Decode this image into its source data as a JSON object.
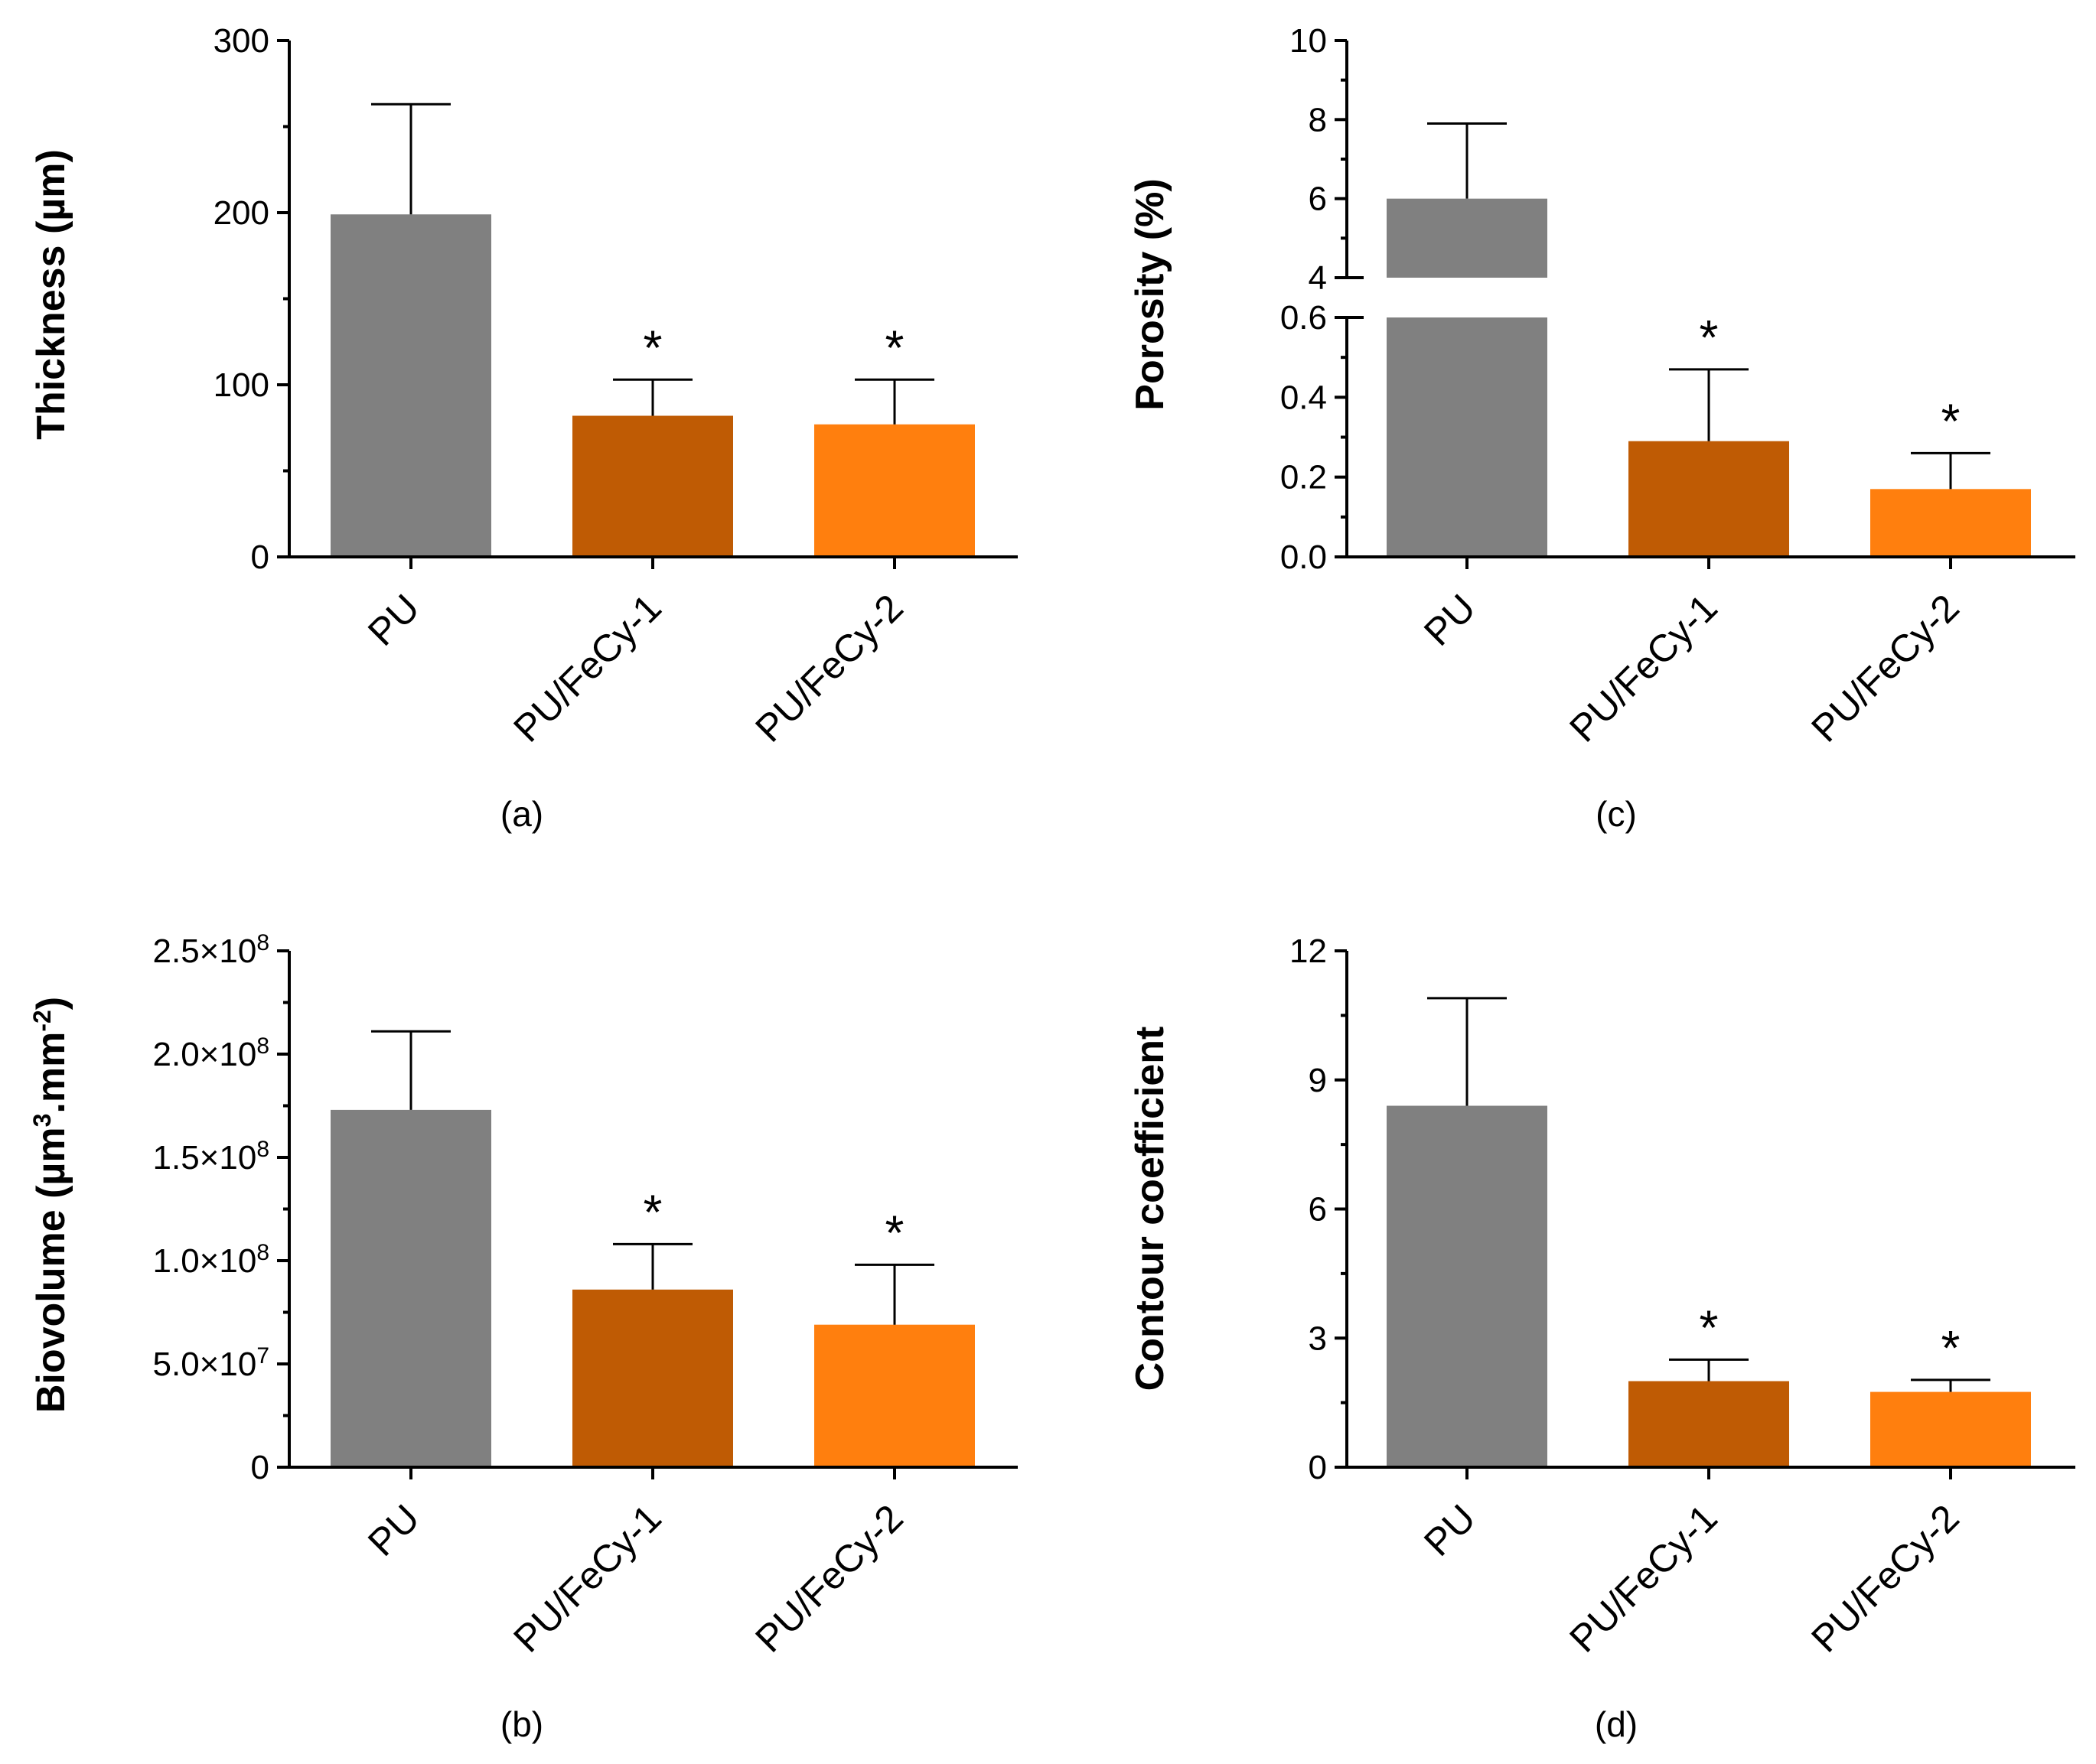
{
  "figure": {
    "background": "#ffffff",
    "colors": {
      "PU": "#808080",
      "PU/FeCy-1": "#bf5b04",
      "PU/FeCy-2": "#ff7f0e",
      "axis": "#000000"
    }
  },
  "chart_data": [
    {
      "id": "a",
      "caption": "(a)",
      "type": "bar",
      "ylabel": "Thickness (µm)",
      "categories": [
        "PU",
        "PU/FeCy-1",
        "PU/FeCy-2"
      ],
      "values": [
        199,
        82,
        77
      ],
      "errors": [
        64,
        21,
        26
      ],
      "significance": [
        "",
        "*",
        "*"
      ],
      "ylim": [
        0,
        300
      ],
      "yticks": [
        0,
        100,
        200,
        300
      ],
      "ytick_labels": [
        "0",
        "100",
        "200",
        "300"
      ],
      "minor_step": 50
    },
    {
      "id": "b",
      "caption": "(b)",
      "type": "bar",
      "ylabel": "Biovolume (µm³.mm⁻²)",
      "ylabel_parts": [
        "Biovolume (µm",
        "3",
        ".mm",
        "-2",
        ")"
      ],
      "categories": [
        "PU",
        "PU/FeCy-1",
        "PU/FeCy-2"
      ],
      "values": [
        173000000,
        86000000,
        69000000
      ],
      "errors": [
        38000000,
        22000000,
        29000000
      ],
      "significance": [
        "",
        "*",
        "*"
      ],
      "ylim": [
        0,
        250000000
      ],
      "yticks": [
        0,
        50000000,
        100000000,
        150000000,
        200000000,
        250000000
      ],
      "ytick_labels": [
        "0",
        "5.0×10⁷",
        "1.0×10⁸",
        "1.5×10⁸",
        "2.0×10⁸",
        "2.5×10⁸"
      ],
      "ytick_parts": [
        [
          "0",
          ""
        ],
        [
          "5.0×10",
          "7"
        ],
        [
          "1.0×10",
          "8"
        ],
        [
          "1.5×10",
          "8"
        ],
        [
          "2.0×10",
          "8"
        ],
        [
          "2.5×10",
          "8"
        ]
      ],
      "minor_step": 25000000
    },
    {
      "id": "c",
      "caption": "(c)",
      "type": "bar",
      "ylabel": "Porosity (%)",
      "categories": [
        "PU",
        "PU/FeCy-1",
        "PU/FeCy-2"
      ],
      "values": [
        6,
        0.29,
        0.17
      ],
      "errors": [
        1.9,
        0.18,
        0.09
      ],
      "significance": [
        "",
        "*",
        "*"
      ],
      "axis_break": true,
      "lower_segment": {
        "ylim": [
          0,
          0.6
        ],
        "yticks": [
          0,
          0.2,
          0.4,
          0.6
        ],
        "ytick_labels": [
          "0.0",
          "0.2",
          "0.4",
          "0.6"
        ],
        "minor_step": 0.1
      },
      "upper_segment": {
        "ylim": [
          4,
          10
        ],
        "yticks": [
          4,
          6,
          8,
          10
        ],
        "ytick_labels": [
          "4",
          "6",
          "8",
          "10"
        ],
        "minor_step": 1
      }
    },
    {
      "id": "d",
      "caption": "(d)",
      "type": "bar",
      "ylabel": "Contour coefficient",
      "categories": [
        "PU",
        "PU/FeCy-1",
        "PU/FeCy-2"
      ],
      "values": [
        8.4,
        2.0,
        1.75
      ],
      "errors": [
        2.5,
        0.5,
        0.28
      ],
      "significance": [
        "",
        "*",
        "*"
      ],
      "ylim": [
        0,
        12
      ],
      "yticks": [
        0,
        3,
        6,
        9,
        12
      ],
      "ytick_labels": [
        "0",
        "3",
        "6",
        "9",
        "12"
      ],
      "minor_step": 1.5
    }
  ]
}
